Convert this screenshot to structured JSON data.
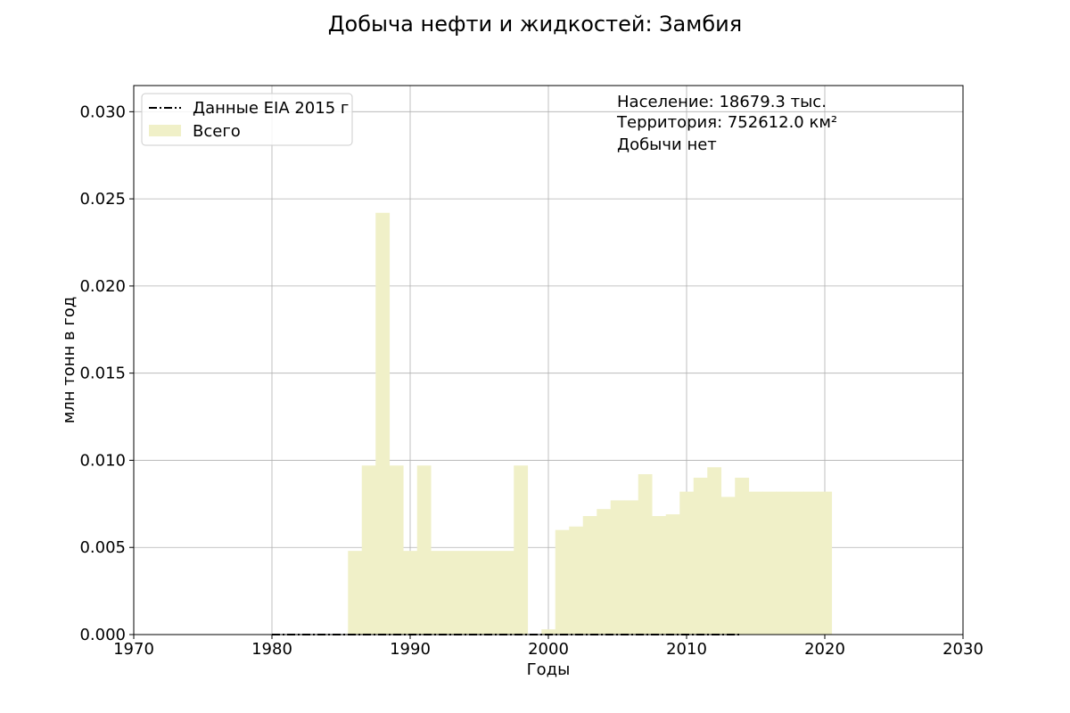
{
  "chart_data": {
    "type": "bar",
    "title": "Добыча нефти и жидкостей: Замбия",
    "xlabel": "Годы",
    "ylabel": "млн тонн в год",
    "xlim": [
      1970,
      2030
    ],
    "ylim": [
      0,
      0.0315
    ],
    "x_ticks": [
      "1970",
      "1980",
      "1990",
      "2000",
      "2010",
      "2020",
      "2030"
    ],
    "y_ticks": [
      "0.000",
      "0.005",
      "0.010",
      "0.015",
      "0.020",
      "0.025",
      "0.030"
    ],
    "grid": true,
    "legend_position": "top-left",
    "legend": [
      {
        "label": "Данные EIA 2015 г",
        "style": "dash-dot",
        "color": "#000000"
      },
      {
        "label": "Всего",
        "style": "patch",
        "color": "#f0f0c8"
      }
    ],
    "annotations": [
      "Население: 18679.3 тыс.",
      "Территория: 752612.0 км²",
      "Добычи нет"
    ],
    "series": [
      {
        "name": "Всего",
        "color": "#f0f0c8",
        "x": [
          1986,
          1987,
          1988,
          1989,
          1990,
          1991,
          1992,
          1993,
          1994,
          1995,
          1996,
          1997,
          1998,
          1999,
          2000,
          2001,
          2002,
          2003,
          2004,
          2005,
          2006,
          2007,
          2008,
          2009,
          2010,
          2011,
          2012,
          2013,
          2014,
          2015,
          2016,
          2017,
          2018,
          2019,
          2020
        ],
        "values": [
          0.0048,
          0.0097,
          0.0242,
          0.0097,
          0.0048,
          0.0097,
          0.0048,
          0.0048,
          0.0048,
          0.0048,
          0.0048,
          0.0048,
          0.0097,
          0,
          0.0003,
          0.006,
          0.0062,
          0.0068,
          0.0072,
          0.0077,
          0.0077,
          0.0092,
          0.0068,
          0.0069,
          0.0082,
          0.009,
          0.0096,
          0.0079,
          0.009,
          0.0082,
          0.0082,
          0.0082,
          0.0082,
          0.0082,
          0.0082
        ]
      },
      {
        "name": "Данные EIA 2015 г",
        "color": "#000000",
        "line_style": "dash-dot",
        "x": [
          1980,
          1981,
          1982,
          1983,
          1984,
          1985,
          1986,
          1987,
          1988,
          1989,
          1990,
          1991,
          1992,
          1993,
          1994,
          1995,
          1996,
          1997,
          1998,
          1999,
          2000,
          2001,
          2002,
          2003,
          2004,
          2005,
          2006,
          2007,
          2008,
          2009,
          2010,
          2011,
          2012,
          2013,
          2014
        ],
        "values": [
          0,
          0,
          0,
          0,
          0,
          0,
          0,
          0,
          0,
          0,
          0,
          0,
          0,
          0,
          0,
          0,
          0,
          0,
          0,
          0,
          0,
          0,
          0,
          0,
          0,
          0,
          0,
          0,
          0,
          0,
          0,
          0,
          0,
          0,
          0
        ]
      }
    ]
  }
}
